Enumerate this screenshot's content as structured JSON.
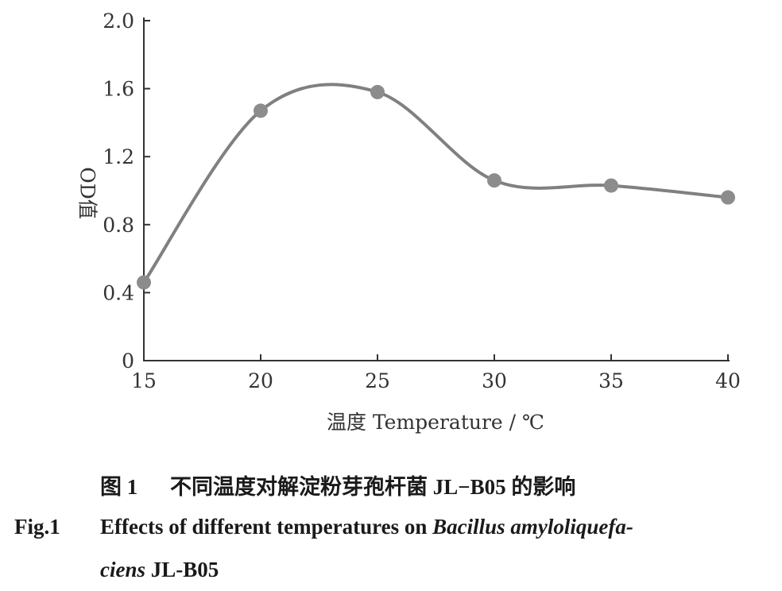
{
  "chart_data": {
    "type": "line",
    "x": [
      15,
      20,
      25,
      30,
      35,
      40
    ],
    "y": [
      0.46,
      1.47,
      1.58,
      1.06,
      1.03,
      0.96
    ],
    "xlabel": "温度 Temperature / ℃",
    "ylabel": "OD值",
    "xticks": [
      "15",
      "20",
      "25",
      "30",
      "35",
      "40"
    ],
    "yticks": [
      "0",
      "0.4",
      "0.8",
      "1.2",
      "1.6",
      "2.0"
    ],
    "xlim": [
      15,
      40
    ],
    "ylim": [
      0,
      2.0
    ],
    "grid": false,
    "smooth": true,
    "colors": {
      "line": "#808080",
      "marker": "#8c8c8c",
      "axis": "#333333"
    }
  },
  "caption": {
    "zh_number": "图 1",
    "zh_text": "不同温度对解淀粉芽孢杆菌 JL−B05 的影响",
    "en_number": "Fig.1",
    "en_line1_prefix": "Effects of different temperatures on ",
    "en_line1_species": "Bacillus amyloliquefa-",
    "en_line2_species": "ciens",
    "en_line2_strain": " JL-B05"
  }
}
